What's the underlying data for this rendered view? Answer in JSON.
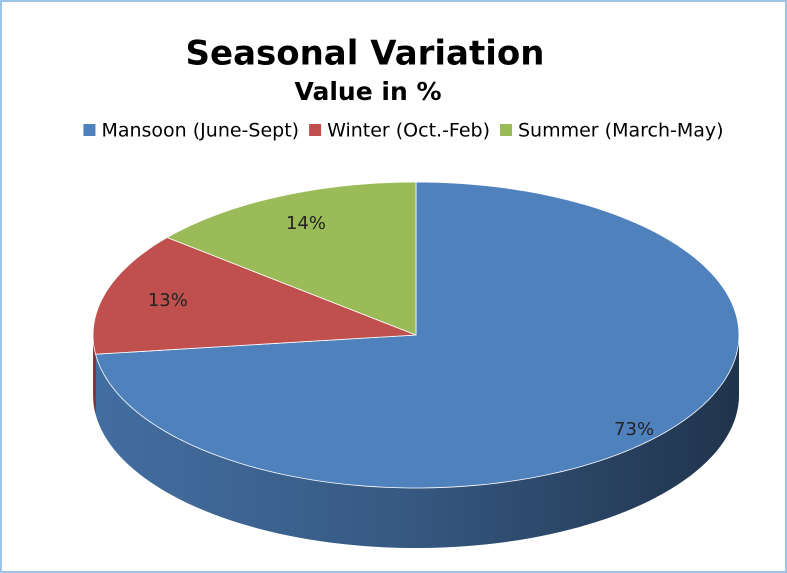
{
  "chart_data": {
    "type": "pie3d",
    "title": "Seasonal Variation",
    "subtitle": "Value in %",
    "categories": [
      "Mansoon (June-Sept)",
      "Winter (Oct.-Feb)",
      "Summer (March-May)"
    ],
    "values": [
      73,
      13,
      14
    ],
    "value_labels": [
      "73%",
      "13%",
      "14%"
    ],
    "colors": [
      "#4f81bd",
      "#c0504d",
      "#9bbb59"
    ],
    "legend": "top"
  }
}
